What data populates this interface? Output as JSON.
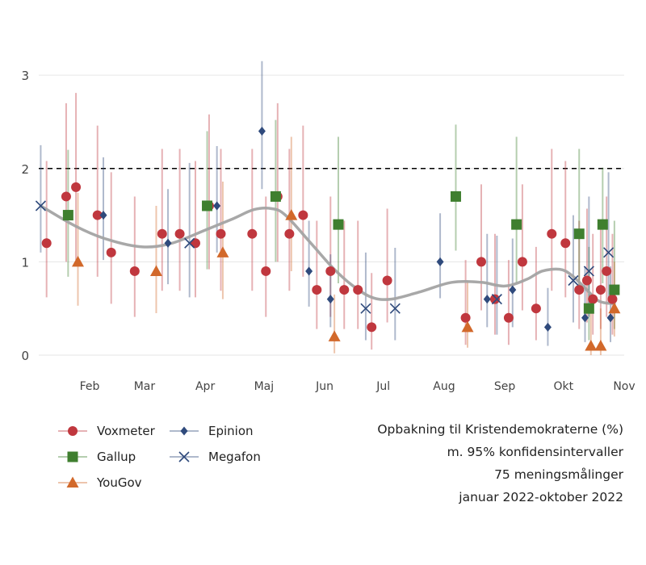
{
  "caption": {
    "line1": "Opbakning til Kristendemokraterne (%)",
    "line2": "m. 95% konfidensintervaller",
    "line3": "75 meningsmålinger",
    "line4": "januar 2022-oktober 2022"
  },
  "colors": {
    "voxmeter": "#c0373e",
    "gallup": "#3f7f2f",
    "yougov": "#d2692b",
    "epinion": "#2f4a7c",
    "megafon": "#2f4a7c",
    "trend": "#a3a3a3",
    "threshold": "#000000",
    "grid": "#e6e6e6",
    "axis_text": "#444444"
  },
  "chart_data": {
    "type": "scatter",
    "title": "Opbakning til Kristendemokraterne (%)",
    "x_range": [
      "2022-01-06",
      "2022-11-01"
    ],
    "y_range": [
      0,
      3.2
    ],
    "y_ticks": [
      0,
      1,
      2,
      3
    ],
    "x_ticks": [
      {
        "label": "Feb",
        "date": "2022-02-01"
      },
      {
        "label": "Mar",
        "date": "2022-03-01"
      },
      {
        "label": "Apr",
        "date": "2022-04-01"
      },
      {
        "label": "Maj",
        "date": "2022-05-01"
      },
      {
        "label": "Jun",
        "date": "2022-06-01"
      },
      {
        "label": "Jul",
        "date": "2022-07-01"
      },
      {
        "label": "Aug",
        "date": "2022-08-01"
      },
      {
        "label": "Sep",
        "date": "2022-09-01"
      },
      {
        "label": "Okt",
        "date": "2022-10-01"
      },
      {
        "label": "Nov",
        "date": "2022-11-01"
      }
    ],
    "threshold": 2,
    "grid": true,
    "legend_position": "bottom-left",
    "series": [
      {
        "name": "Voxmeter",
        "key": "voxmeter",
        "marker": "circle",
        "points": [
          {
            "x": "2022-01-10",
            "y": 1.2,
            "lo": 0.62,
            "hi": 2.08
          },
          {
            "x": "2022-01-20",
            "y": 1.7,
            "lo": 1.0,
            "hi": 2.7
          },
          {
            "x": "2022-01-25",
            "y": 1.8,
            "lo": 1.02,
            "hi": 2.81
          },
          {
            "x": "2022-02-05",
            "y": 1.5,
            "lo": 0.84,
            "hi": 2.46
          },
          {
            "x": "2022-02-12",
            "y": 1.1,
            "lo": 0.55,
            "hi": 1.96
          },
          {
            "x": "2022-02-24",
            "y": 0.9,
            "lo": 0.41,
            "hi": 1.7
          },
          {
            "x": "2022-03-10",
            "y": 1.3,
            "lo": 0.69,
            "hi": 2.21
          },
          {
            "x": "2022-03-19",
            "y": 1.3,
            "lo": 0.69,
            "hi": 2.21
          },
          {
            "x": "2022-03-27",
            "y": 1.2,
            "lo": 0.62,
            "hi": 2.08
          },
          {
            "x": "2022-04-03",
            "y": 1.6,
            "lo": 0.92,
            "hi": 2.58
          },
          {
            "x": "2022-04-09",
            "y": 1.3,
            "lo": 0.69,
            "hi": 2.21
          },
          {
            "x": "2022-04-25",
            "y": 1.3,
            "lo": 0.69,
            "hi": 2.21
          },
          {
            "x": "2022-05-02",
            "y": 0.9,
            "lo": 0.41,
            "hi": 1.7
          },
          {
            "x": "2022-05-08",
            "y": 1.7,
            "lo": 1.0,
            "hi": 2.7
          },
          {
            "x": "2022-05-14",
            "y": 1.3,
            "lo": 0.69,
            "hi": 2.21
          },
          {
            "x": "2022-05-21",
            "y": 1.5,
            "lo": 0.84,
            "hi": 2.46
          },
          {
            "x": "2022-05-28",
            "y": 0.7,
            "lo": 0.28,
            "hi": 1.44
          },
          {
            "x": "2022-06-04",
            "y": 0.9,
            "lo": 0.41,
            "hi": 1.7
          },
          {
            "x": "2022-06-11",
            "y": 0.7,
            "lo": 0.28,
            "hi": 1.44
          },
          {
            "x": "2022-06-18",
            "y": 0.7,
            "lo": 0.28,
            "hi": 1.44
          },
          {
            "x": "2022-06-25",
            "y": 0.3,
            "lo": 0.06,
            "hi": 0.88
          },
          {
            "x": "2022-07-03",
            "y": 0.8,
            "lo": 0.35,
            "hi": 1.57
          },
          {
            "x": "2022-08-12",
            "y": 0.4,
            "lo": 0.11,
            "hi": 1.02
          },
          {
            "x": "2022-08-20",
            "y": 1.0,
            "lo": 0.48,
            "hi": 1.83
          },
          {
            "x": "2022-08-27",
            "y": 0.6,
            "lo": 0.22,
            "hi": 1.3
          },
          {
            "x": "2022-09-03",
            "y": 0.4,
            "lo": 0.11,
            "hi": 1.02
          },
          {
            "x": "2022-09-10",
            "y": 1.0,
            "lo": 0.48,
            "hi": 1.83
          },
          {
            "x": "2022-09-17",
            "y": 0.5,
            "lo": 0.16,
            "hi": 1.16
          },
          {
            "x": "2022-09-25",
            "y": 1.3,
            "lo": 0.69,
            "hi": 2.21
          },
          {
            "x": "2022-10-02",
            "y": 1.2,
            "lo": 0.62,
            "hi": 2.08
          },
          {
            "x": "2022-10-09",
            "y": 0.7,
            "lo": 0.28,
            "hi": 1.44
          },
          {
            "x": "2022-10-13",
            "y": 0.8,
            "lo": 0.35,
            "hi": 1.57
          },
          {
            "x": "2022-10-16",
            "y": 0.6,
            "lo": 0.22,
            "hi": 1.3
          },
          {
            "x": "2022-10-20",
            "y": 0.7,
            "lo": 0.28,
            "hi": 1.44
          },
          {
            "x": "2022-10-23",
            "y": 0.9,
            "lo": 0.41,
            "hi": 1.7
          },
          {
            "x": "2022-10-26",
            "y": 0.6,
            "lo": 0.22,
            "hi": 1.3
          }
        ]
      },
      {
        "name": "Gallup",
        "key": "gallup",
        "marker": "square",
        "points": [
          {
            "x": "2022-01-21",
            "y": 1.5,
            "lo": 0.84,
            "hi": 2.2
          },
          {
            "x": "2022-04-02",
            "y": 1.6,
            "lo": 0.92,
            "hi": 2.4
          },
          {
            "x": "2022-05-07",
            "y": 1.7,
            "lo": 1.0,
            "hi": 2.52
          },
          {
            "x": "2022-06-08",
            "y": 1.4,
            "lo": 0.77,
            "hi": 2.34
          },
          {
            "x": "2022-08-07",
            "y": 1.7,
            "lo": 1.12,
            "hi": 2.47
          },
          {
            "x": "2022-09-07",
            "y": 1.4,
            "lo": 0.77,
            "hi": 2.34
          },
          {
            "x": "2022-10-09",
            "y": 1.3,
            "lo": 0.69,
            "hi": 2.21
          },
          {
            "x": "2022-10-14",
            "y": 0.5,
            "lo": 0.16,
            "hi": 1.16
          },
          {
            "x": "2022-10-21",
            "y": 1.4,
            "lo": 0.77,
            "hi": 2.01
          },
          {
            "x": "2022-10-27",
            "y": 0.7,
            "lo": 0.28,
            "hi": 1.44
          }
        ]
      },
      {
        "name": "YouGov",
        "key": "yougov",
        "marker": "triangle",
        "points": [
          {
            "x": "2022-01-26",
            "y": 1.0,
            "lo": 0.53,
            "hi": 1.74
          },
          {
            "x": "2022-03-07",
            "y": 0.9,
            "lo": 0.45,
            "hi": 1.6
          },
          {
            "x": "2022-04-10",
            "y": 1.1,
            "lo": 0.6,
            "hi": 1.86
          },
          {
            "x": "2022-05-15",
            "y": 1.5,
            "lo": 0.9,
            "hi": 2.34
          },
          {
            "x": "2022-06-06",
            "y": 0.2,
            "lo": 0.02,
            "hi": 0.65
          },
          {
            "x": "2022-08-13",
            "y": 0.3,
            "lo": 0.08,
            "hi": 0.8
          },
          {
            "x": "2022-10-15",
            "y": 0.1,
            "lo": 0.0,
            "hi": 0.5
          },
          {
            "x": "2022-10-20",
            "y": 0.1,
            "lo": 0.0,
            "hi": 0.5
          },
          {
            "x": "2022-10-27",
            "y": 0.5,
            "lo": 0.2,
            "hi": 1.0
          }
        ]
      },
      {
        "name": "Epinion",
        "key": "epinion",
        "marker": "diamond",
        "points": [
          {
            "x": "2022-02-08",
            "y": 1.5,
            "lo": 1.02,
            "hi": 2.12
          },
          {
            "x": "2022-03-13",
            "y": 1.2,
            "lo": 0.76,
            "hi": 1.78
          },
          {
            "x": "2022-04-07",
            "y": 1.6,
            "lo": 1.1,
            "hi": 2.24
          },
          {
            "x": "2022-04-30",
            "y": 2.4,
            "lo": 1.78,
            "hi": 3.15
          },
          {
            "x": "2022-05-24",
            "y": 0.9,
            "lo": 0.52,
            "hi": 1.44
          },
          {
            "x": "2022-06-04",
            "y": 0.6,
            "lo": 0.3,
            "hi": 1.08
          },
          {
            "x": "2022-07-30",
            "y": 1.0,
            "lo": 0.61,
            "hi": 1.52
          },
          {
            "x": "2022-08-23",
            "y": 0.6,
            "lo": 0.3,
            "hi": 1.3
          },
          {
            "x": "2022-09-05",
            "y": 0.7,
            "lo": 0.3,
            "hi": 1.25
          },
          {
            "x": "2022-09-23",
            "y": 0.3,
            "lo": 0.1,
            "hi": 0.72
          },
          {
            "x": "2022-10-12",
            "y": 0.4,
            "lo": 0.14,
            "hi": 0.95
          },
          {
            "x": "2022-10-25",
            "y": 0.4,
            "lo": 0.14,
            "hi": 0.95
          }
        ]
      },
      {
        "name": "Megafon",
        "key": "megafon",
        "marker": "x",
        "points": [
          {
            "x": "2022-01-07",
            "y": 1.6,
            "lo": 1.1,
            "hi": 2.25
          },
          {
            "x": "2022-03-24",
            "y": 1.2,
            "lo": 0.62,
            "hi": 2.06
          },
          {
            "x": "2022-06-22",
            "y": 0.5,
            "lo": 0.16,
            "hi": 1.1
          },
          {
            "x": "2022-07-07",
            "y": 0.5,
            "lo": 0.16,
            "hi": 1.15
          },
          {
            "x": "2022-08-28",
            "y": 0.6,
            "lo": 0.22,
            "hi": 1.28
          },
          {
            "x": "2022-10-06",
            "y": 0.8,
            "lo": 0.35,
            "hi": 1.5
          },
          {
            "x": "2022-10-14",
            "y": 0.9,
            "lo": 0.41,
            "hi": 1.7
          },
          {
            "x": "2022-10-24",
            "y": 1.1,
            "lo": 0.55,
            "hi": 1.96
          }
        ]
      }
    ],
    "trend": [
      {
        "x": "2022-01-07",
        "y": 1.6
      },
      {
        "x": "2022-01-25",
        "y": 1.38
      },
      {
        "x": "2022-02-10",
        "y": 1.24
      },
      {
        "x": "2022-02-28",
        "y": 1.16
      },
      {
        "x": "2022-03-15",
        "y": 1.2
      },
      {
        "x": "2022-04-01",
        "y": 1.34
      },
      {
        "x": "2022-04-15",
        "y": 1.46
      },
      {
        "x": "2022-04-26",
        "y": 1.56
      },
      {
        "x": "2022-05-05",
        "y": 1.57
      },
      {
        "x": "2022-05-12",
        "y": 1.5
      },
      {
        "x": "2022-05-25",
        "y": 1.2
      },
      {
        "x": "2022-06-05",
        "y": 0.94
      },
      {
        "x": "2022-06-15",
        "y": 0.75
      },
      {
        "x": "2022-06-25",
        "y": 0.62
      },
      {
        "x": "2022-07-05",
        "y": 0.6
      },
      {
        "x": "2022-07-20",
        "y": 0.68
      },
      {
        "x": "2022-08-05",
        "y": 0.78
      },
      {
        "x": "2022-08-20",
        "y": 0.78
      },
      {
        "x": "2022-09-01",
        "y": 0.74
      },
      {
        "x": "2022-09-12",
        "y": 0.81
      },
      {
        "x": "2022-09-20",
        "y": 0.9
      },
      {
        "x": "2022-09-29",
        "y": 0.92
      },
      {
        "x": "2022-10-05",
        "y": 0.86
      },
      {
        "x": "2022-10-12",
        "y": 0.72
      },
      {
        "x": "2022-10-19",
        "y": 0.58
      },
      {
        "x": "2022-10-27",
        "y": 0.55
      }
    ]
  }
}
